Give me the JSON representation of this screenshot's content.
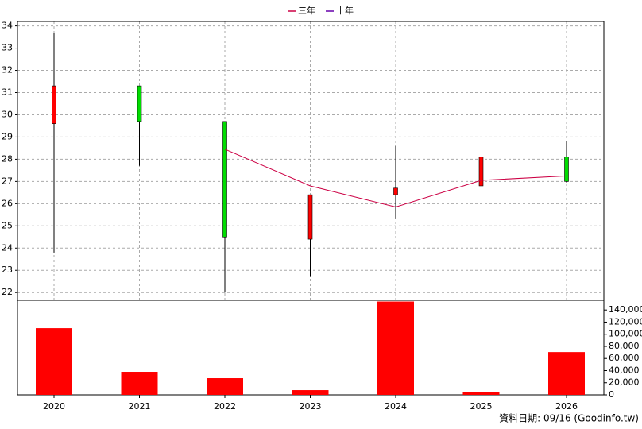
{
  "chart_data": {
    "type": "candlestick",
    "categories": [
      "2020",
      "2021",
      "2022",
      "2023",
      "2024",
      "2025",
      "2026"
    ],
    "open": [
      29.6,
      31.3,
      29.7,
      24.4,
      26.4,
      26.8,
      28.1
    ],
    "high": [
      33.7,
      31.3,
      29.7,
      26.4,
      28.6,
      28.4,
      28.8
    ],
    "low": [
      23.8,
      27.7,
      22.0,
      22.7,
      25.3,
      24.0,
      26.95
    ],
    "close": [
      31.3,
      29.7,
      24.5,
      26.4,
      26.7,
      28.1,
      27.0
    ],
    "up_color": "#ff0000",
    "down_color": "#00dd00",
    "series": [
      {
        "name": "三年",
        "color": "#cc0044",
        "values": [
          null,
          null,
          28.45,
          26.8,
          25.85,
          27.05,
          27.25
        ]
      },
      {
        "name": "十年",
        "color": "#6600aa",
        "values": [
          null,
          null,
          null,
          null,
          null,
          null,
          null
        ]
      }
    ],
    "ylim": [
      21.65,
      34.2
    ],
    "yticks": [
      22,
      23,
      24,
      25,
      26,
      27,
      28,
      29,
      30,
      31,
      32,
      33,
      34
    ],
    "volume": {
      "values": [
        110000,
        38000,
        27500,
        7800,
        154000,
        5200,
        70600
      ],
      "color": "#ff0000",
      "ylim": [
        0,
        156000
      ],
      "yticks": [
        0,
        {
          "value": 20000,
          "label": "20,000"
        },
        {
          "value": 40000,
          "label": "40,000"
        },
        {
          "value": 60000,
          "label": "60,000"
        },
        {
          "value": 80000,
          "label": "80,000"
        },
        {
          "value": 100000,
          "label": "100,000"
        },
        {
          "value": 120000,
          "label": "120,000"
        },
        {
          "value": 140000,
          "label": "140,000"
        }
      ]
    },
    "grid": true,
    "footer": "資料日期: 09/16  (Goodinfo.tw)"
  }
}
